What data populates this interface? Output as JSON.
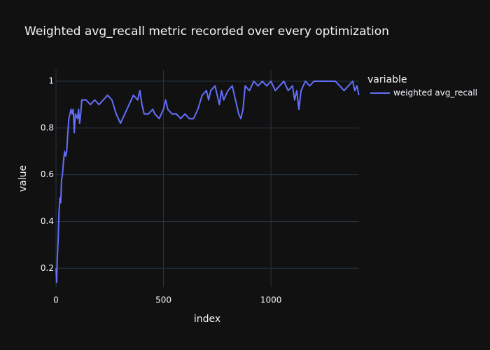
{
  "chart_data": {
    "type": "line",
    "title": "Weighted avg_recall metric recorded over every optimization",
    "x_label": "index",
    "y_label": "value",
    "legend_title": "variable",
    "xlim": [
      0,
      1410
    ],
    "ylim": [
      0.12,
      1.048
    ],
    "xticks": [
      0,
      500,
      1000
    ],
    "yticks": [
      0.2,
      0.4,
      0.6,
      0.8,
      1
    ],
    "grid": true,
    "x": [
      0,
      3,
      6,
      10,
      14,
      18,
      22,
      26,
      30,
      35,
      40,
      45,
      50,
      55,
      60,
      65,
      70,
      75,
      80,
      85,
      90,
      100,
      105,
      110,
      115,
      120,
      140,
      160,
      180,
      200,
      220,
      240,
      260,
      280,
      290,
      300,
      310,
      320,
      340,
      360,
      380,
      390,
      400,
      410,
      430,
      450,
      460,
      480,
      500,
      510,
      520,
      540,
      560,
      580,
      600,
      620,
      640,
      660,
      680,
      700,
      710,
      720,
      740,
      750,
      760,
      770,
      780,
      800,
      820,
      840,
      850,
      860,
      870,
      880,
      900,
      920,
      940,
      960,
      980,
      1000,
      1020,
      1040,
      1060,
      1080,
      1100,
      1110,
      1120,
      1130,
      1140,
      1160,
      1180,
      1200,
      1250,
      1300,
      1320,
      1340,
      1360,
      1380,
      1390,
      1400,
      1409
    ],
    "series": [
      {
        "name": "weighted avg_recall",
        "color": "#636efa",
        "values": [
          0.2,
          0.14,
          0.24,
          0.32,
          0.44,
          0.5,
          0.48,
          0.58,
          0.6,
          0.66,
          0.7,
          0.68,
          0.7,
          0.78,
          0.84,
          0.86,
          0.88,
          0.86,
          0.88,
          0.78,
          0.86,
          0.84,
          0.88,
          0.82,
          0.86,
          0.92,
          0.92,
          0.9,
          0.92,
          0.9,
          0.92,
          0.94,
          0.92,
          0.86,
          0.84,
          0.82,
          0.84,
          0.86,
          0.9,
          0.94,
          0.92,
          0.96,
          0.9,
          0.86,
          0.86,
          0.88,
          0.86,
          0.84,
          0.88,
          0.92,
          0.88,
          0.86,
          0.86,
          0.84,
          0.86,
          0.84,
          0.84,
          0.88,
          0.94,
          0.96,
          0.92,
          0.96,
          0.98,
          0.94,
          0.9,
          0.96,
          0.92,
          0.96,
          0.98,
          0.9,
          0.86,
          0.84,
          0.88,
          0.98,
          0.96,
          1,
          0.98,
          1,
          0.98,
          1,
          0.96,
          0.98,
          1,
          0.96,
          0.98,
          0.92,
          0.96,
          0.88,
          0.96,
          1,
          0.98,
          1,
          1,
          1,
          0.98,
          0.96,
          0.98,
          1,
          0.96,
          0.98,
          0.94
        ]
      }
    ]
  }
}
